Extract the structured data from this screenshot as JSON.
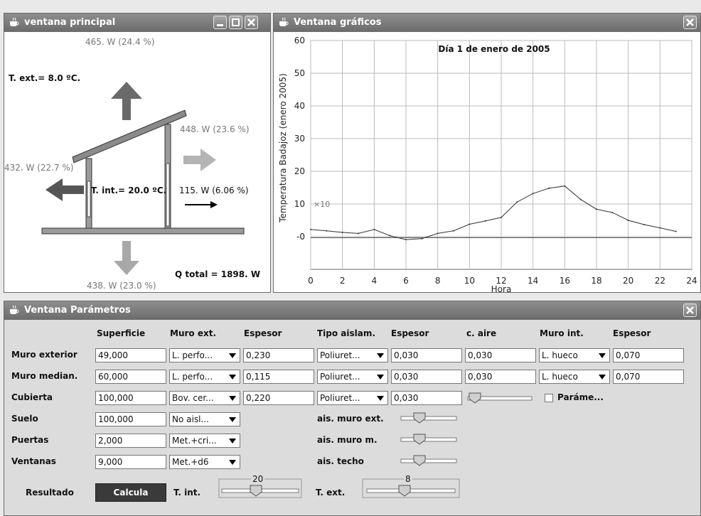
{
  "main_window": {
    "title": "ventana principal",
    "top_arrow_label": "465. W (24.4 %)",
    "t_ext": "T. ext.= 8.0 ºC.",
    "right_upper_label": "448. W (23.6 %)",
    "left_label": "432. W (22.7 %)",
    "t_int": "T. int.= 20.0 ºC.",
    "right_lower_label": "115. W (6.06 %)",
    "q_total": "Q total = 1898. W",
    "bottom_label": "438. W (23.0 %)"
  },
  "chart_window": {
    "title": "Ventana gráficos"
  },
  "chart_data": {
    "type": "line",
    "title": "Día 1 de enero de 2005",
    "xlabel": "Hora",
    "ylabel": "Temperatura Badajoz  (enero 2005)",
    "y_multiplier_label": "×10",
    "xlim": [
      0,
      24
    ],
    "ylim": [
      -10,
      60
    ],
    "x_ticks": [
      "0",
      "2",
      "4",
      "6",
      "8",
      "10",
      "12",
      "14",
      "16",
      "18",
      "20",
      "22",
      "24"
    ],
    "y_ticks": [
      "60",
      "50",
      "40",
      "30",
      "20",
      "10",
      "-0"
    ],
    "grid": true,
    "x": [
      0,
      1,
      2,
      3,
      4,
      5,
      6,
      7,
      8,
      9,
      10,
      11,
      12,
      13,
      14,
      15,
      16,
      17,
      18,
      19,
      20,
      21,
      22,
      23
    ],
    "values": [
      2.2,
      1.8,
      1.3,
      1.0,
      2.2,
      0.3,
      -0.9,
      -0.6,
      1.0,
      1.8,
      3.8,
      4.8,
      5.9,
      10.6,
      13.2,
      14.8,
      15.5,
      11.4,
      8.4,
      7.4,
      5.0,
      3.7,
      2.7,
      1.6
    ]
  },
  "params_window": {
    "title": "Ventana Parámetros",
    "headers": [
      "Superficie",
      "Muro ext.",
      "Espesor",
      "Tipo aislam.",
      "Espesor",
      "c. aire",
      "Muro int.",
      "Espesor"
    ],
    "rows": {
      "muro_exterior": {
        "label": "Muro exterior",
        "superficie": "49,000",
        "muro_ext": "L. perfo...",
        "espesor": "0,230",
        "tipo_aislam": "Poliuret...",
        "espesor_aisl": "0,030",
        "c_aire": "0,030",
        "muro_int": "L. hueco",
        "espesor_int": "0,070"
      },
      "muro_median": {
        "label": "Muro median.",
        "superficie": "60,000",
        "muro_ext": "L. perfo...",
        "espesor": "0,115",
        "tipo_aislam": "Poliuret...",
        "espesor_aisl": "0,030",
        "c_aire": "0,030",
        "muro_int": "L. hueco",
        "espesor_int": "0,070"
      },
      "cubierta": {
        "label": "Cubierta",
        "superficie": "100,000",
        "muro_ext": "Bov. cer...",
        "espesor": "0,220",
        "tipo_aislam": "Poliuret...",
        "espesor_aisl": "0,030",
        "checkbox_label": "Paráme..."
      },
      "suelo": {
        "label": "Suelo",
        "superficie": "100,000",
        "muro_ext": "No aisl..."
      },
      "puertas": {
        "label": "Puertas",
        "superficie": "2,000",
        "muro_ext": "Met.+cri..."
      },
      "ventanas": {
        "label": "Ventanas",
        "superficie": "9,000",
        "muro_ext": "Met.+d6"
      }
    },
    "ais_labels": {
      "muro_ext": "ais. muro ext.",
      "muro_m": "ais. muro m.",
      "techo": "ais. techo"
    },
    "resultado_label": "Resultado",
    "calcula_button": "Calcula",
    "t_int_label": "T. int.",
    "t_int_value": "20",
    "t_ext_label": "T. ext.",
    "t_ext_value": "8"
  }
}
